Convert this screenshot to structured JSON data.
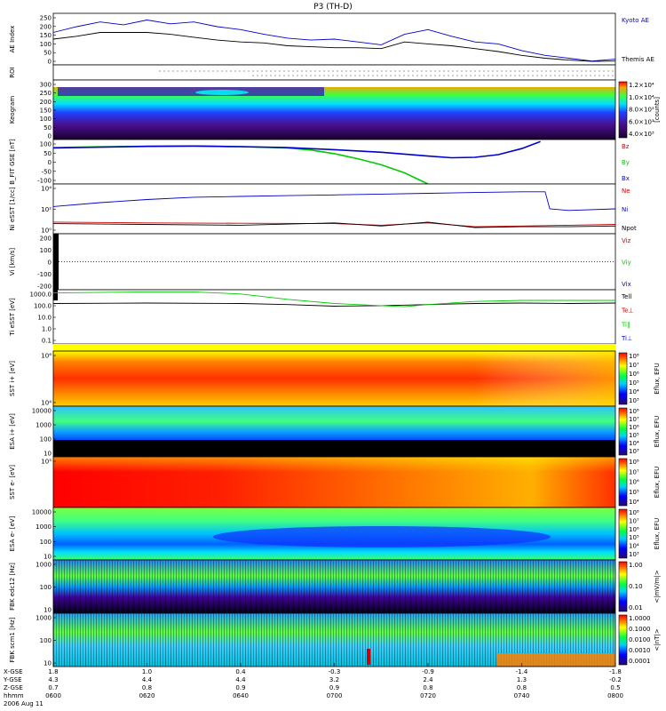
{
  "title": "P3 (TH-D)",
  "date": "2006 Aug 11",
  "chart_data": {
    "type": "line",
    "x": {
      "tick_labels": [
        "0600",
        "0620",
        "0640",
        "0700",
        "0720",
        "0740",
        "0800"
      ],
      "coord_rows": [
        {
          "label": "X-GSE",
          "values": [
            "1.8",
            "1.0",
            "0.4",
            "-0.3",
            "-0.9",
            "-1.4",
            "-1.8"
          ]
        },
        {
          "label": "Y-GSE",
          "values": [
            "4.3",
            "4.4",
            "4.4",
            "3.2",
            "2.4",
            "1.3",
            "-0.2"
          ]
        },
        {
          "label": "Z-GSE",
          "values": [
            "0.7",
            "0.8",
            "0.9",
            "0.9",
            "0.8",
            "0.8",
            "0.5"
          ]
        }
      ],
      "time_label": "hhmm"
    },
    "panels": [
      {
        "name": "ae",
        "ylabel": "AE Index",
        "ylim": [
          -10,
          260
        ],
        "ticks": [
          "250",
          "200",
          "150",
          "100",
          "50",
          "0"
        ],
        "series": [
          {
            "name": "Kyoto AE",
            "color": "#0000cc",
            "x": [
              0,
              5,
              10,
              15,
              20,
              25,
              30,
              35,
              40,
              45,
              50,
              55,
              60,
              65,
              70,
              75,
              80,
              85,
              90,
              95,
              100,
              105,
              110,
              115,
              120
            ],
            "y": [
              160,
              190,
              215,
              200,
              225,
              205,
              215,
              190,
              175,
              150,
              130,
              120,
              125,
              110,
              95,
              150,
              175,
              140,
              110,
              100,
              65,
              40,
              25,
              10,
              20
            ]
          },
          {
            "name": "Themis AE",
            "color": "#000000",
            "x": [
              0,
              5,
              10,
              15,
              20,
              25,
              30,
              35,
              40,
              45,
              50,
              55,
              60,
              65,
              70,
              75,
              80,
              85,
              90,
              95,
              100,
              105,
              110,
              115,
              120
            ],
            "y": [
              125,
              140,
              160,
              160,
              160,
              150,
              135,
              120,
              110,
              105,
              90,
              85,
              80,
              80,
              75,
              110,
              100,
              90,
              75,
              60,
              40,
              25,
              15,
              8,
              10
            ]
          }
        ]
      },
      {
        "name": "roi",
        "ylabel": "ROI"
      },
      {
        "name": "keogram",
        "ylabel": "Keogram",
        "ticks": [
          "300",
          "250",
          "200",
          "150",
          "100",
          "50",
          "0"
        ],
        "colorbar": {
          "unit": "[counts]",
          "labels": [
            "1.2×10⁴",
            "1.0×10⁴",
            "8.0×10³",
            "6.0×10³",
            "4.0×10³"
          ]
        }
      },
      {
        "name": "bfit",
        "ylabel": "B_FIT GSE [nT]",
        "ylim": [
          -110,
          110
        ],
        "ticks": [
          "100",
          "50",
          "0",
          "-50",
          "-100"
        ],
        "series": [
          {
            "name": "Bz",
            "color": "#cc0000",
            "x": [],
            "y": []
          },
          {
            "name": "By",
            "color": "#00cc00",
            "x": [
              0,
              10,
              20,
              30,
              40,
              50,
              55,
              60,
              65,
              70,
              75,
              80
            ],
            "y": [
              70,
              74,
              77,
              78,
              75,
              68,
              58,
              40,
              15,
              -15,
              -55,
              -110
            ]
          },
          {
            "name": "Bx",
            "color": "#0000cc",
            "x": [
              0,
              10,
              20,
              30,
              40,
              50,
              60,
              70,
              80,
              85,
              90,
              95,
              100,
              104
            ],
            "y": [
              68,
              72,
              76,
              78,
              75,
              70,
              60,
              47,
              28,
              20,
              22,
              35,
              65,
              100
            ]
          }
        ]
      },
      {
        "name": "ni",
        "ylabel": "Ni eSST [1/cc]",
        "ticks": [
          "10⁴",
          "10²",
          "10⁰"
        ],
        "series": [
          {
            "name": "Ne",
            "color": "#cc0000",
            "x": [
              0,
              20,
              40,
              60,
              70,
              80,
              90,
              100,
              110,
              120
            ],
            "y": [
              0.3,
              0.2,
              0.15,
              0.1,
              -0.1,
              0.2,
              -0.3,
              -0.2,
              -0.1,
              0.0
            ]
          },
          {
            "name": "Ni",
            "color": "#0000cc",
            "x": [
              0,
              10,
              20,
              30,
              40,
              50,
              60,
              70,
              80,
              90,
              100,
              105,
              106,
              110,
              120
            ],
            "y": [
              2.3,
              2.8,
              3.2,
              3.5,
              3.6,
              3.7,
              3.8,
              3.9,
              4.0,
              4.1,
              4.2,
              4.2,
              2.0,
              1.8,
              2.0
            ]
          },
          {
            "name": "Npot",
            "color": "#000000",
            "x": [
              0,
              20,
              40,
              60,
              70,
              80,
              90,
              100,
              110,
              120
            ],
            "y": [
              0.1,
              0.0,
              -0.1,
              0.2,
              -0.2,
              0.3,
              -0.4,
              -0.3,
              -0.3,
              -0.2
            ]
          }
        ]
      },
      {
        "name": "vi",
        "ylabel": "Vi [km/s]",
        "ylim": [
          -300,
          300
        ],
        "ticks": [
          "200",
          "100",
          "0",
          "-100",
          "-200"
        ],
        "series": [
          {
            "name": "Viz",
            "color": "#cc0000",
            "x": [],
            "y": []
          },
          {
            "name": "Viy",
            "color": "#00cc00",
            "x": [],
            "y": []
          },
          {
            "name": "Vix",
            "color": "#0000cc",
            "x": [],
            "y": []
          }
        ]
      },
      {
        "name": "ti",
        "ylabel": "Ti eSST [eV]",
        "ticks": [
          "1000.0",
          "100.0",
          "10.0",
          "1.0",
          "0.1"
        ],
        "series": [
          {
            "name": "Tell",
            "color": "#000000",
            "x": [
              0,
              20,
              40,
              50,
              60,
              70,
              80,
              90,
              100,
              110,
              120
            ],
            "y": [
              2.3,
              2.35,
              2.3,
              2.2,
              2.05,
              2.1,
              2.2,
              2.3,
              2.35,
              2.3,
              2.35
            ]
          },
          {
            "name": "Te⊥",
            "color": "#cc0000",
            "x": [],
            "y": []
          },
          {
            "name": "Ti‖",
            "color": "#00cc00",
            "x": [
              0,
              20,
              30,
              40,
              50,
              60,
              70,
              75,
              80,
              90,
              100,
              110,
              120
            ],
            "y": [
              3.3,
              3.4,
              3.4,
              3.2,
              2.7,
              2.3,
              2.1,
              2.0,
              2.2,
              2.5,
              2.6,
              2.6,
              2.6
            ]
          },
          {
            "name": "Ti⊥",
            "color": "#0000cc",
            "x": [],
            "y": []
          }
        ]
      },
      {
        "name": "sst_ion",
        "ylabel": "SST i+ [eV]",
        "ticks": [
          "10⁶",
          "10⁴"
        ],
        "colorbar": {
          "unit": "Eflux, EFU",
          "labels": [
            "10⁸",
            "10⁷",
            "10⁶",
            "10⁵",
            "10⁴",
            "10³"
          ]
        }
      },
      {
        "name": "esa_ion",
        "ylabel": "ESA i+ [eV]",
        "ticks": [
          "10000",
          "1000",
          "100",
          "10"
        ],
        "colorbar": {
          "unit": "Eflux, EFU",
          "labels": [
            "10⁸",
            "10⁷",
            "10⁶",
            "10⁵",
            "10⁴",
            "10³"
          ]
        }
      },
      {
        "name": "sst_elec",
        "ylabel": "SST e- [eV]",
        "ticks": [
          "10⁵"
        ],
        "colorbar": {
          "unit": "Eflux, EFU",
          "labels": [
            "10⁸",
            "10⁷",
            "10⁶",
            "10⁵",
            "10⁴"
          ]
        }
      },
      {
        "name": "esa_elec",
        "ylabel": "ESA e- [eV]",
        "ticks": [
          "10000",
          "1000",
          "100",
          "10"
        ],
        "colorbar": {
          "unit": "Eflux, EFU",
          "labels": [
            "10⁸",
            "10⁷",
            "10⁶",
            "10⁵",
            "10⁴",
            "10³"
          ]
        }
      },
      {
        "name": "fbk_e",
        "ylabel": "FBK edc12 [Hz]",
        "ticks": [
          "1000",
          "100",
          "10"
        ],
        "colorbar": {
          "unit": "<|mV/m|>",
          "labels": [
            "1.00",
            "0.10",
            "0.01"
          ]
        }
      },
      {
        "name": "fbk_b",
        "ylabel": "FBK scm1 [Hz]",
        "ticks": [
          "1000",
          "100",
          "10"
        ],
        "colorbar": {
          "unit": "<|nT|>",
          "labels": [
            "1.0000",
            "0.1000",
            "0.0100",
            "0.0010",
            "0.0001"
          ]
        }
      }
    ]
  }
}
